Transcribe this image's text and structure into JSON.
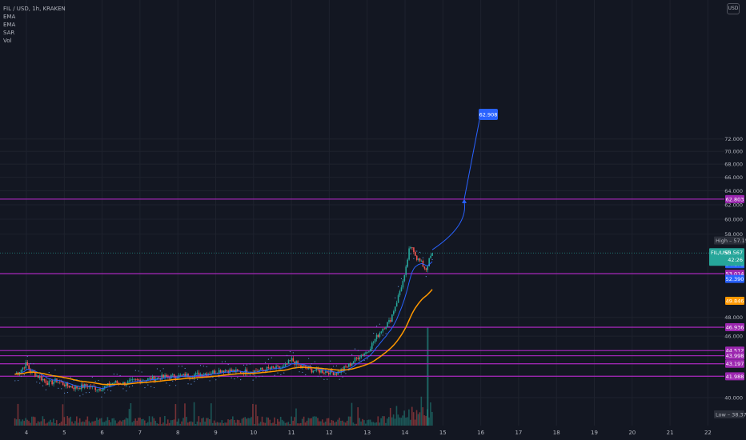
{
  "header": {
    "symbol_line": "FIL / USD, 1h, KRAKEN",
    "indicators": [
      "EMA",
      "EMA",
      "SAR",
      "Vol"
    ],
    "currency_button": "USD"
  },
  "colors": {
    "background": "#131722",
    "grid": "#1e222d",
    "axis_text": "#b2b5be",
    "level_line": "#9c27b0",
    "ema_fast": "#2962ff",
    "ema_slow": "#ff9800",
    "sar": "#5d8fd8",
    "price_tag": "#26a69a",
    "projection": "#2962ff"
  },
  "chart_data": {
    "type": "candlestick",
    "x_ticks": [
      "4",
      "5",
      "6",
      "7",
      "8",
      "9",
      "10",
      "11",
      "12",
      "13",
      "14",
      "15",
      "16",
      "17",
      "18",
      "19",
      "20",
      "21",
      "22"
    ],
    "y_ticks": [
      "72.000",
      "70.000",
      "68.000",
      "66.000",
      "64.000",
      "62.000",
      "60.000",
      "58.000",
      "48.000",
      "46.000",
      "40.000"
    ],
    "y_scale": "log",
    "grid": true,
    "levels": [
      {
        "label": "62.803",
        "value": 62.803
      },
      {
        "label": "53.014",
        "value": 53.014
      },
      {
        "label": "46.936",
        "value": 46.936
      },
      {
        "label": "44.512",
        "value": 44.512
      },
      {
        "label": "43.998",
        "value": 43.998
      },
      {
        "label": "43.197",
        "value": 43.197
      },
      {
        "label": "41.988",
        "value": 41.988
      }
    ],
    "price_markers": [
      {
        "label": "54.171",
        "value": 54.171,
        "color": "#2962ff"
      },
      {
        "label": "52.390",
        "value": 52.39,
        "color": "#2962ff"
      },
      {
        "label": "49.846",
        "value": 49.846,
        "color": "#ff9800"
      }
    ],
    "current": {
      "label": "FIL/USD",
      "value_label": "55.567",
      "countdown": "42:26",
      "value": 55.567
    },
    "high": {
      "label": "High",
      "value_label": "57.158",
      "value": 57.158
    },
    "low": {
      "label": "Low",
      "value_label": "38.374",
      "value": 38.374
    },
    "projection": {
      "label": "62.908",
      "value": 62.908
    },
    "anchors": [
      [
        3.7,
        42.2
      ],
      [
        3.85,
        42.6
      ],
      [
        4.0,
        43.2
      ],
      [
        4.1,
        42.5
      ],
      [
        4.3,
        42.0
      ],
      [
        4.6,
        41.3
      ],
      [
        4.8,
        41.6
      ],
      [
        5.0,
        41.2
      ],
      [
        5.3,
        40.9
      ],
      [
        5.6,
        41.1
      ],
      [
        5.9,
        40.8
      ],
      [
        6.1,
        41.0
      ],
      [
        6.3,
        41.4
      ],
      [
        6.6,
        41.3
      ],
      [
        6.9,
        41.6
      ],
      [
        7.2,
        41.7
      ],
      [
        7.6,
        41.9
      ],
      [
        8.0,
        42.0
      ],
      [
        8.4,
        42.1
      ],
      [
        8.8,
        42.3
      ],
      [
        9.2,
        42.6
      ],
      [
        9.6,
        42.4
      ],
      [
        10.0,
        42.5
      ],
      [
        10.4,
        42.7
      ],
      [
        10.8,
        42.8
      ],
      [
        11.0,
        43.6
      ],
      [
        11.2,
        43.0
      ],
      [
        11.5,
        42.6
      ],
      [
        11.8,
        42.5
      ],
      [
        12.2,
        42.3
      ],
      [
        12.5,
        43.0
      ],
      [
        12.8,
        44.0
      ],
      [
        13.0,
        44.4
      ],
      [
        13.2,
        45.6
      ],
      [
        13.4,
        46.8
      ],
      [
        13.6,
        47.6
      ],
      [
        13.8,
        50.0
      ],
      [
        13.9,
        51.5
      ],
      [
        14.0,
        52.8
      ],
      [
        14.1,
        55.8
      ],
      [
        14.2,
        56.4
      ],
      [
        14.3,
        55.0
      ],
      [
        14.45,
        54.2
      ],
      [
        14.55,
        53.5
      ],
      [
        14.65,
        54.8
      ],
      [
        14.72,
        55.567
      ]
    ]
  }
}
